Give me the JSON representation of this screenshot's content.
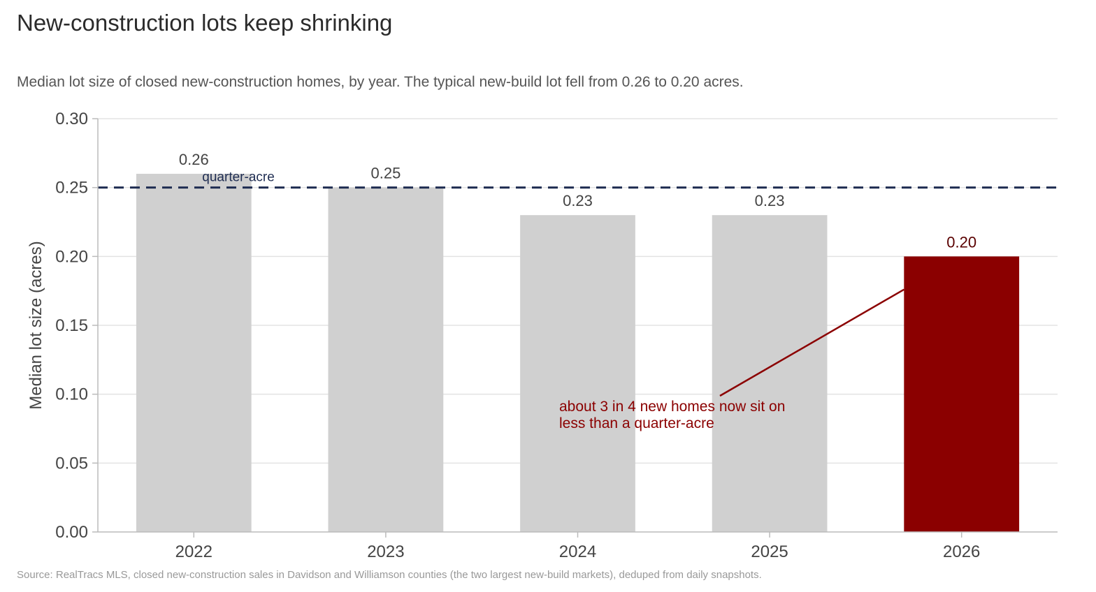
{
  "title": "New-construction lots keep shrinking",
  "subtitle": "Median lot size of closed new-construction homes, by year. The typical new-build lot fell from 0.26 to 0.20 acres.",
  "source": "Source: RealTracs MLS, closed new-construction sales in Davidson and Williamson counties (the two largest new-build markets), deduped from daily snapshots.",
  "chart_data": {
    "type": "bar",
    "categories": [
      "2022",
      "2023",
      "2024",
      "2025",
      "2026"
    ],
    "values": [
      0.26,
      0.25,
      0.23,
      0.23,
      0.2
    ],
    "value_labels": [
      "0.26",
      "0.25",
      "0.23",
      "0.23",
      "0.20"
    ],
    "xlabel": "",
    "ylabel": "Median lot size (acres)",
    "ylim": [
      0,
      0.3
    ],
    "yticks": [
      0.0,
      0.05,
      0.1,
      0.15,
      0.2,
      0.25,
      0.3
    ],
    "ytick_labels": [
      "0.00",
      "0.05",
      "0.10",
      "0.15",
      "0.20",
      "0.25",
      "0.30"
    ],
    "grid": true,
    "highlight_index": 4,
    "colors": {
      "bar": "#d0d0d0",
      "highlight": "#8b0000",
      "reference": "#1f2d52",
      "grid": "#e3e3e3",
      "axis": "#bbbbbb"
    },
    "reference_line": {
      "value": 0.25,
      "label": "quarter-acre"
    },
    "annotation": {
      "lines": [
        "about 3 in 4 new homes now sit on",
        "less than a quarter-acre"
      ],
      "target_index": 4
    }
  }
}
